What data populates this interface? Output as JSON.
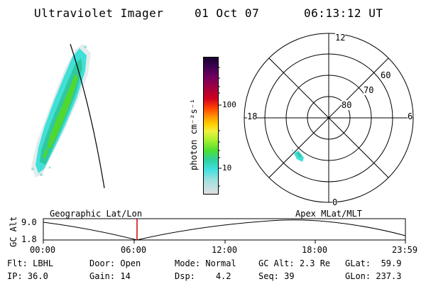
{
  "header": {
    "instrument": "Ultraviolet Imager",
    "date": "01 Oct 07",
    "time": "06:13:12 UT"
  },
  "colorbar": {
    "unit_label": "photon cm⁻²s⁻¹",
    "ticks": [
      "100",
      "10"
    ],
    "colors": [
      "#1a0030",
      "#400050",
      "#700060",
      "#a00040",
      "#d00020",
      "#ff4000",
      "#ff9000",
      "#ffd000",
      "#f0f040",
      "#b0f030",
      "#50e030",
      "#30d0a0",
      "#40e0e0",
      "#a0e0e0",
      "#e0e0e0"
    ]
  },
  "polar_plot": {
    "mlt_labels": {
      "top": "12",
      "left": "18",
      "right": "6",
      "bottom": "0"
    },
    "lat_labels": [
      "60",
      "70",
      "80"
    ]
  },
  "timeline": {
    "y_axis_label": "GC Alt",
    "y_ticks": [
      "9.0",
      "1.8"
    ],
    "left_caption": "Geographic Lat/Lon",
    "right_caption": "Apex MLat/MLT",
    "x_ticks": [
      "00:00",
      "06:00",
      "12:00",
      "18:00",
      "23:59"
    ],
    "current_time_marker_color": "#cc0000"
  },
  "status": {
    "flt_label": "Flt:",
    "flt_value": "LBHL",
    "ip_label": "IP:",
    "ip_value": "36.0",
    "door_label": "Door:",
    "door_value": "Open",
    "gain_label": "Gain:",
    "gain_value": "14",
    "mode_label": "Mode:",
    "mode_value": "Normal",
    "dsp_label": "Dsp:",
    "dsp_value": "4.2",
    "gcalt_label": "GC Alt:",
    "gcalt_value": "2.3 Re",
    "seq_label": "Seq:",
    "seq_value": "39",
    "glat_label": "GLat:",
    "glat_value": "59.9",
    "glon_label": "GLon:",
    "glon_value": "237.3"
  }
}
